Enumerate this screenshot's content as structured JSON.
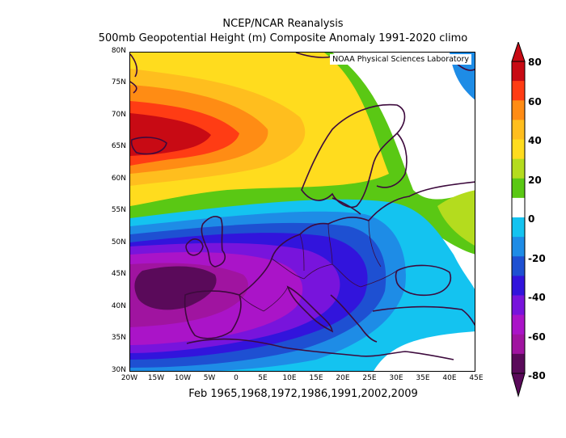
{
  "title_line1": "NCEP/NCAR Reanalysis",
  "title_line2": "500mb Geopotential Height (m) Composite Anomaly 1991-2020 climo",
  "credit": "NOAA Physical Sciences Laboratory",
  "footer": "Feb 1965,1968,1972,1986,1991,2002,2009",
  "lat_labels": [
    "80N",
    "75N",
    "70N",
    "65N",
    "60N",
    "55N",
    "50N",
    "45N",
    "40N",
    "35N",
    "30N"
  ],
  "lon_labels": [
    "20W",
    "15W",
    "10W",
    "5W",
    "0",
    "5E",
    "10E",
    "15E",
    "20E",
    "25E",
    "30E",
    "35E",
    "40E",
    "45E"
  ],
  "colorbar": {
    "labels": [
      "80",
      "60",
      "40",
      "20",
      "0",
      "-20",
      "-40",
      "-60",
      "-80"
    ],
    "levels": [
      {
        "range": "70 to 80",
        "color": "#c80a14"
      },
      {
        "range": "60 to 70",
        "color": "#ff3c14"
      },
      {
        "range": "50 to 60",
        "color": "#ff8c14"
      },
      {
        "range": "40 to 50",
        "color": "#ffbe1e"
      },
      {
        "range": "30 to 40",
        "color": "#ffdc1e"
      },
      {
        "range": "20 to 30",
        "color": "#b4dc1e"
      },
      {
        "range": "10 to 20",
        "color": "#5ac814"
      },
      {
        "range": "-10 to 10",
        "color": "#ffffff"
      },
      {
        "range": "-20 to -10",
        "color": "#14c3f0"
      },
      {
        "range": "-30 to -20",
        "color": "#1e8ce6"
      },
      {
        "range": "-40 to -30",
        "color": "#1e50d2"
      },
      {
        "range": "-50 to -40",
        "color": "#3214dc"
      },
      {
        "range": "-60 to -50",
        "color": "#7814dc"
      },
      {
        "range": "-70 to -60",
        "color": "#aa14c8"
      },
      {
        "range": "-80 to -70",
        "color": "#a014a0"
      },
      {
        "range": "below -80",
        "color": "#5a0a5a"
      }
    ]
  }
}
